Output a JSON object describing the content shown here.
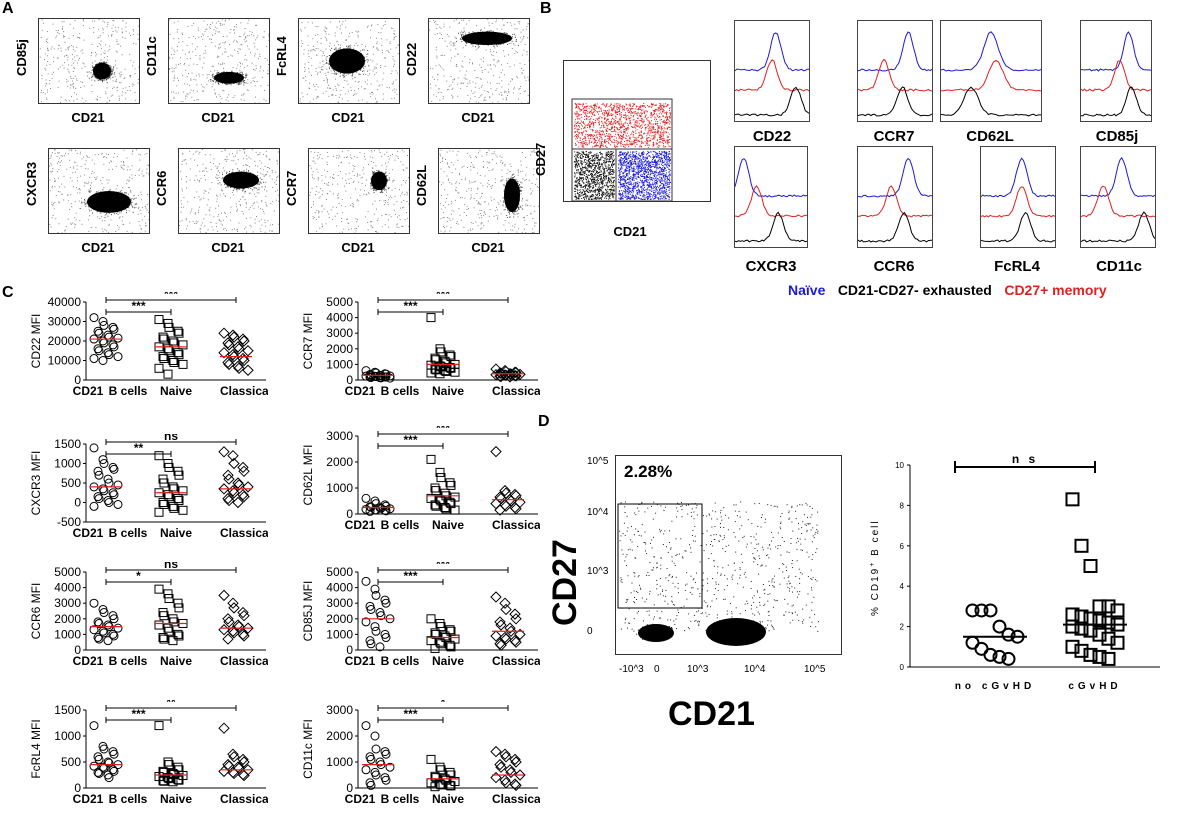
{
  "panel_labels": {
    "a": "A",
    "b": "B",
    "c": "C",
    "d": "D"
  },
  "panel_a": {
    "plots": [
      {
        "y": "CD85j",
        "x": "CD21"
      },
      {
        "y": "CD11c",
        "x": "CD21"
      },
      {
        "y": "FcRL4",
        "x": "CD21"
      },
      {
        "y": "CD22",
        "x": "CD21"
      },
      {
        "y": "CXCR3",
        "x": "CD21"
      },
      {
        "y": "CCR6",
        "x": "CD21"
      },
      {
        "y": "CCR7",
        "x": "CD21"
      },
      {
        "y": "CD62L",
        "x": "CD21"
      }
    ]
  },
  "panel_b": {
    "gating": {
      "y": "CD27",
      "x": "CD21"
    },
    "histograms": [
      "CD22",
      "CCR7",
      "CD62L",
      "CD85j",
      "CXCR3",
      "CCR6",
      "FcRL4",
      "CD11c"
    ],
    "legend": {
      "naive": "Naïve",
      "exhausted": "CD21-CD27- exhausted",
      "memory": "CD27+ memory"
    },
    "colors": {
      "naive": "#1a1ad6",
      "exhausted": "#000000",
      "memory": "#e02020"
    }
  },
  "chart_data": [
    {
      "type": "scatter",
      "ylabel": "CD22 MFI",
      "categories": [
        "CD21- B cells",
        "Naive",
        "Classical"
      ],
      "ylim": [
        0,
        40000
      ],
      "yticks": [
        "0",
        "10000",
        "20000",
        "30000",
        "40000"
      ],
      "means": [
        21000,
        17000,
        12000
      ],
      "values": [
        [
          32000,
          30000,
          28000,
          27000,
          26000,
          25000,
          24000,
          23000,
          22000,
          21500,
          21000,
          20000,
          19000,
          18000,
          17000,
          16000,
          15000,
          14000,
          13000,
          12000,
          11000,
          10000
        ],
        [
          31000,
          29000,
          27000,
          25000,
          24000,
          22000,
          21000,
          20000,
          19000,
          18000,
          17000,
          16000,
          15000,
          14000,
          13000,
          12000,
          11000,
          10000,
          9000,
          8000,
          6000,
          3000
        ],
        [
          24000,
          23000,
          22000,
          21000,
          20000,
          19000,
          18000,
          17000,
          16000,
          15000,
          14000,
          13000,
          12000,
          11000,
          10000,
          9000,
          8000,
          7000,
          6000,
          5000
        ]
      ],
      "comparisons": [
        {
          "from": 0,
          "to": 1,
          "label": "***"
        },
        {
          "from": 0,
          "to": 2,
          "label": "***"
        }
      ]
    },
    {
      "type": "scatter",
      "ylabel": "CCR7 MFI",
      "categories": [
        "CD21- B cells",
        "Naive",
        "Classical"
      ],
      "ylim": [
        0,
        5000
      ],
      "yticks": [
        "0",
        "1000",
        "2000",
        "3000",
        "4000",
        "5000"
      ],
      "means": [
        300,
        1000,
        400
      ],
      "values": [
        [
          600,
          500,
          450,
          400,
          380,
          350,
          320,
          300,
          280,
          260,
          250,
          240,
          220,
          200,
          190,
          180,
          160,
          150,
          140,
          120
        ],
        [
          4000,
          2000,
          1800,
          1600,
          1500,
          1400,
          1300,
          1200,
          1100,
          1000,
          950,
          900,
          850,
          800,
          750,
          700,
          650,
          600,
          550,
          500,
          450,
          400
        ],
        [
          700,
          600,
          550,
          500,
          480,
          450,
          430,
          400,
          380,
          360,
          340,
          320,
          300,
          280,
          260,
          240,
          220,
          200
        ]
      ],
      "comparisons": [
        {
          "from": 0,
          "to": 1,
          "label": "***"
        },
        {
          "from": 0,
          "to": 2,
          "label": "***"
        }
      ]
    },
    {
      "type": "scatter",
      "ylabel": "CXCR3 MFI",
      "categories": [
        "CD21- B cells",
        "Naive",
        "Classical"
      ],
      "ylim": [
        -500,
        1500
      ],
      "yticks": [
        "-500",
        "0",
        "500",
        "1000",
        "1500"
      ],
      "means": [
        400,
        250,
        350
      ],
      "values": [
        [
          1400,
          1100,
          1000,
          900,
          850,
          800,
          700,
          600,
          500,
          450,
          400,
          350,
          300,
          250,
          200,
          150,
          100,
          50,
          0,
          -50,
          -100
        ],
        [
          1200,
          1000,
          900,
          800,
          700,
          600,
          500,
          400,
          350,
          300,
          250,
          200,
          150,
          100,
          50,
          0,
          -50,
          -100,
          -150,
          -200,
          -250
        ],
        [
          1300,
          1200,
          1000,
          900,
          800,
          700,
          600,
          500,
          450,
          400,
          350,
          300,
          250,
          200,
          150,
          100,
          50,
          0
        ]
      ],
      "comparisons": [
        {
          "from": 0,
          "to": 1,
          "label": "**"
        },
        {
          "from": 0,
          "to": 2,
          "label": "ns"
        }
      ]
    },
    {
      "type": "scatter",
      "ylabel": "CD62L MFI",
      "categories": [
        "CD21- B cells",
        "Naive",
        "Classical"
      ],
      "ylim": [
        0,
        3000
      ],
      "yticks": [
        "0",
        "1000",
        "2000",
        "3000"
      ],
      "means": [
        250,
        700,
        550
      ],
      "values": [
        [
          600,
          500,
          400,
          350,
          300,
          280,
          260,
          240,
          220,
          200,
          180,
          160,
          150,
          140,
          120,
          100
        ],
        [
          2100,
          1600,
          1400,
          1200,
          1100,
          1000,
          900,
          800,
          700,
          650,
          600,
          550,
          500,
          450,
          400,
          350,
          300,
          250,
          200,
          150
        ],
        [
          2400,
          900,
          800,
          750,
          700,
          650,
          600,
          550,
          500,
          450,
          400,
          350,
          300,
          250,
          200,
          150
        ]
      ],
      "comparisons": [
        {
          "from": 0,
          "to": 1,
          "label": "***"
        },
        {
          "from": 0,
          "to": 2,
          "label": "***"
        }
      ]
    },
    {
      "type": "scatter",
      "ylabel": "CCR6 MFI",
      "categories": [
        "CD21- B cells",
        "Naive",
        "Classical"
      ],
      "ylim": [
        0,
        5000
      ],
      "yticks": [
        "0",
        "1000",
        "2000",
        "3000",
        "4000",
        "5000"
      ],
      "means": [
        1500,
        1700,
        1400
      ],
      "values": [
        [
          3000,
          2600,
          2400,
          2200,
          2000,
          1800,
          1700,
          1600,
          1500,
          1400,
          1300,
          1200,
          1100,
          1000,
          900,
          800,
          700,
          600
        ],
        [
          3900,
          3600,
          3300,
          3000,
          2700,
          2400,
          2200,
          2000,
          1800,
          1700,
          1600,
          1400,
          1200,
          1000,
          900,
          800,
          700,
          600
        ],
        [
          3500,
          3000,
          2700,
          2400,
          2200,
          2000,
          1800,
          1600,
          1500,
          1400,
          1300,
          1200,
          1100,
          1000,
          900,
          700
        ]
      ],
      "comparisons": [
        {
          "from": 0,
          "to": 1,
          "label": "*"
        },
        {
          "from": 0,
          "to": 2,
          "label": "ns"
        }
      ]
    },
    {
      "type": "scatter",
      "ylabel": "CD85J MFI",
      "categories": [
        "CD21- B cells",
        "Naive",
        "Classical"
      ],
      "ylim": [
        0,
        5000
      ],
      "yticks": [
        "0",
        "1000",
        "2000",
        "3000",
        "4000",
        "5000"
      ],
      "means": [
        2000,
        800,
        1200
      ],
      "values": [
        [
          4400,
          3900,
          3500,
          3200,
          3000,
          2800,
          2600,
          2400,
          2200,
          2000,
          1800,
          1500,
          1200,
          1000,
          800,
          600,
          400,
          200
        ],
        [
          2000,
          1700,
          1500,
          1300,
          1200,
          1100,
          1000,
          900,
          800,
          700,
          600,
          500,
          400,
          300,
          200,
          100
        ],
        [
          3400,
          3000,
          2600,
          2300,
          2000,
          1800,
          1600,
          1400,
          1200,
          1000,
          900,
          800,
          700,
          600,
          500,
          400,
          300
        ]
      ],
      "comparisons": [
        {
          "from": 0,
          "to": 1,
          "label": "***"
        },
        {
          "from": 0,
          "to": 2,
          "label": "***"
        }
      ]
    },
    {
      "type": "scatter",
      "ylabel": "FcRL4 MFI",
      "categories": [
        "CD21- B cells",
        "Naive",
        "Classical"
      ],
      "ylim": [
        0,
        1500
      ],
      "yticks": [
        "0",
        "500",
        "1000",
        "1500"
      ],
      "means": [
        450,
        250,
        350
      ],
      "values": [
        [
          1200,
          800,
          750,
          700,
          650,
          600,
          550,
          500,
          480,
          450,
          420,
          400,
          380,
          350,
          320,
          300,
          280,
          250,
          200
        ],
        [
          1200,
          500,
          450,
          400,
          350,
          320,
          300,
          280,
          260,
          240,
          220,
          200,
          180,
          160,
          150,
          140,
          130,
          120
        ],
        [
          1150,
          650,
          600,
          550,
          500,
          450,
          420,
          400,
          380,
          350,
          320,
          300,
          280,
          260,
          240
        ]
      ],
      "comparisons": [
        {
          "from": 0,
          "to": 1,
          "label": "***"
        },
        {
          "from": 0,
          "to": 2,
          "label": "**"
        }
      ]
    },
    {
      "type": "scatter",
      "ylabel": "CD11c MFI",
      "categories": [
        "CD21- B cells",
        "Naive",
        "Classical"
      ],
      "ylim": [
        0,
        3000
      ],
      "yticks": [
        "0",
        "1000",
        "2000",
        "3000"
      ],
      "means": [
        900,
        350,
        500
      ],
      "values": [
        [
          2400,
          2000,
          1500,
          1400,
          1300,
          1200,
          1100,
          1000,
          900,
          800,
          700,
          600,
          500,
          400,
          300,
          200,
          100
        ],
        [
          1100,
          800,
          700,
          600,
          500,
          450,
          400,
          350,
          300,
          250,
          200,
          150,
          120,
          100,
          80,
          50
        ],
        [
          1400,
          1300,
          1200,
          1100,
          1000,
          900,
          800,
          700,
          600,
          500,
          400,
          300,
          200,
          150,
          100
        ]
      ],
      "comparisons": [
        {
          "from": 0,
          "to": 1,
          "label": "***"
        },
        {
          "from": 0,
          "to": 2,
          "label": "*"
        }
      ]
    },
    {
      "type": "scatter",
      "ylabel": "% CD19+ B cell",
      "categories": [
        "no cGvHD",
        "cGvHD"
      ],
      "ylim": [
        0,
        10
      ],
      "yticks": [
        "0",
        "2",
        "4",
        "6",
        "8",
        "10"
      ],
      "means": [
        1.5,
        2.1
      ],
      "values": [
        [
          2.8,
          2.8,
          2.8,
          2.0,
          1.6,
          1.5,
          1.2,
          0.9,
          0.6,
          0.5,
          0.4
        ],
        [
          8.3,
          6.0,
          5.0,
          3.0,
          3.0,
          2.8,
          2.6,
          2.5,
          2.4,
          2.3,
          2.2,
          2.1,
          2.0,
          1.9,
          1.8,
          1.6,
          1.4,
          1.2,
          1.0,
          0.8,
          0.6,
          0.5,
          0.4
        ]
      ],
      "comparisons": [
        {
          "from": 0,
          "to": 1,
          "label": "n s"
        }
      ]
    }
  ],
  "panel_c": {
    "category_display": [
      "CD21",
      "B cells",
      "Naive",
      "Classical"
    ],
    "superscript": "-"
  },
  "panel_d": {
    "flow": {
      "y": "CD27",
      "x": "CD21",
      "gate_percent": "2.28%",
      "yticks": [
        "10^5",
        "10^4",
        "10^3",
        "0"
      ],
      "xticks": [
        "-10^3",
        "0",
        "10^3",
        "10^4",
        "10^5"
      ]
    },
    "scatter": {
      "ylabel": "% CD19",
      "ylabel_sup": "+",
      "ylabel_end": "B cell",
      "categories": [
        "no cGvHD",
        "cGvHD"
      ],
      "sig": "n s"
    }
  }
}
